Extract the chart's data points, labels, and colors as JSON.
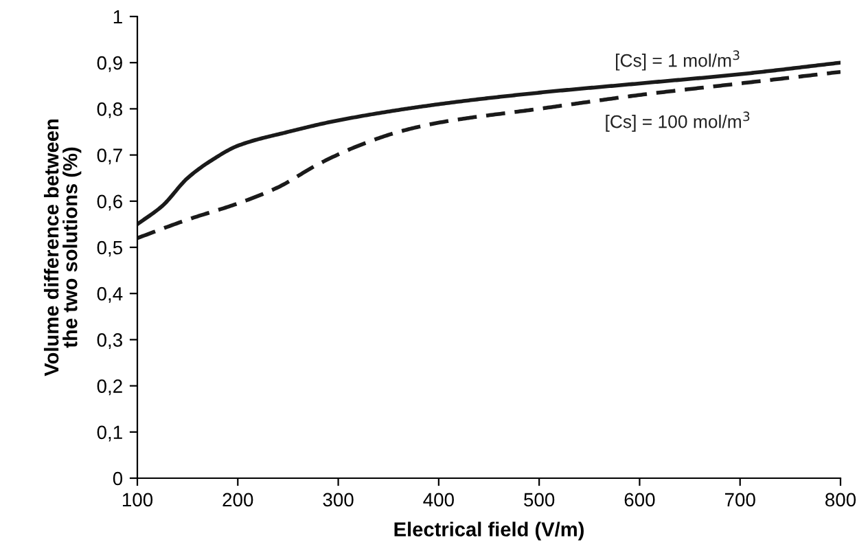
{
  "chart_data": {
    "type": "line",
    "xlabel": "Electrical field (V/m)",
    "ylabel": "Volume difference between\nthe two solutions (%)",
    "series": [
      {
        "name": "[Cs] = 1 mol/m$^{3}$",
        "color": "#1a1a1a",
        "line_style": "solid",
        "x": [
          100,
          125,
          150,
          175,
          200,
          250,
          300,
          400,
          500,
          600,
          700,
          800
        ],
        "values": [
          0.55,
          0.59,
          0.65,
          0.69,
          0.72,
          0.75,
          0.775,
          0.81,
          0.835,
          0.855,
          0.875,
          0.9
        ]
      },
      {
        "name": "[Cs] = 100 mol/m$^{3}$",
        "color": "#1a1a1a",
        "line_style": "dashed",
        "x": [
          100,
          150,
          200,
          240,
          280,
          320,
          360,
          400,
          500,
          600,
          700,
          800
        ],
        "values": [
          0.52,
          0.56,
          0.595,
          0.63,
          0.68,
          0.72,
          0.75,
          0.77,
          0.8,
          0.83,
          0.855,
          0.88
        ]
      }
    ],
    "xlim": [
      100,
      800
    ],
    "xticks": [
      100,
      200,
      300,
      400,
      500,
      600,
      700,
      800
    ],
    "ylim": [
      0,
      1
    ],
    "yticks": [
      0,
      {
        "value": 0.1,
        "label": "0,1"
      },
      {
        "value": 0.2,
        "label": "0,2"
      },
      {
        "value": 0.3,
        "label": "0,3"
      },
      {
        "value": 0.4,
        "label": "0,4"
      },
      {
        "value": 0.5,
        "label": "0,5"
      },
      {
        "value": 0.6,
        "label": "0,6"
      },
      {
        "value": 0.7,
        "label": "0,7"
      },
      {
        "value": 0.8,
        "label": "0,8"
      },
      {
        "value": 0.9,
        "label": "0,9"
      },
      1
    ],
    "grid": false,
    "legend": false,
    "marker": "none"
  }
}
